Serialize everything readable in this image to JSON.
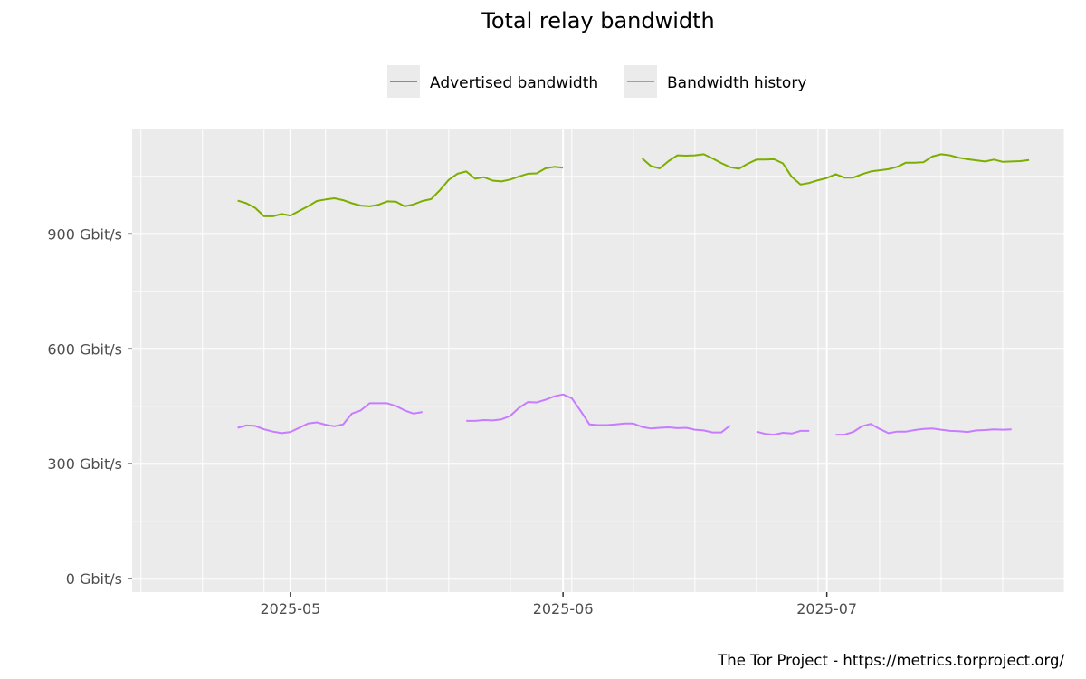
{
  "chart_data": {
    "type": "line",
    "title": "Total relay bandwidth",
    "caption": "The Tor Project - https://metrics.torproject.org/",
    "xlabel": "",
    "ylabel": "",
    "x_range": [
      "2025-04-13",
      "2025-07-28"
    ],
    "y_range": [
      -35,
      1175
    ],
    "y_ticks": [
      {
        "value": 0,
        "label": "0 Gbit/s"
      },
      {
        "value": 300,
        "label": "300 Gbit/s"
      },
      {
        "value": 600,
        "label": "600 Gbit/s"
      },
      {
        "value": 900,
        "label": "900 Gbit/s"
      }
    ],
    "x_ticks": [
      {
        "date": "2025-05-01",
        "label": "2025-05"
      },
      {
        "date": "2025-06-01",
        "label": "2025-06"
      },
      {
        "date": "2025-07-01",
        "label": "2025-07"
      }
    ],
    "grid": true,
    "legend_position": "top",
    "series": [
      {
        "name": "Advertised bandwidth",
        "color": "#7cae00",
        "segments": [
          [
            [
              "2025-04-25",
              987
            ],
            [
              "2025-04-26",
              980
            ],
            [
              "2025-04-27",
              968
            ],
            [
              "2025-04-28",
              946
            ],
            [
              "2025-04-29",
              946
            ],
            [
              "2025-04-30",
              952
            ],
            [
              "2025-05-01",
              948
            ],
            [
              "2025-05-02",
              960
            ],
            [
              "2025-05-03",
              972
            ],
            [
              "2025-05-04",
              986
            ],
            [
              "2025-05-05",
              990
            ],
            [
              "2025-05-06",
              993
            ],
            [
              "2025-05-07",
              988
            ],
            [
              "2025-05-08",
              980
            ],
            [
              "2025-05-09",
              974
            ],
            [
              "2025-05-10",
              972
            ],
            [
              "2025-05-11",
              976
            ],
            [
              "2025-05-12",
              985
            ],
            [
              "2025-05-13",
              984
            ],
            [
              "2025-05-14",
              972
            ],
            [
              "2025-05-15",
              977
            ],
            [
              "2025-05-16",
              986
            ],
            [
              "2025-05-17",
              991
            ],
            [
              "2025-05-18",
              1014
            ],
            [
              "2025-05-19",
              1041
            ],
            [
              "2025-05-20",
              1057
            ],
            [
              "2025-05-21",
              1063
            ],
            [
              "2025-05-22",
              1044
            ],
            [
              "2025-05-23",
              1048
            ],
            [
              "2025-05-24",
              1039
            ],
            [
              "2025-05-25",
              1037
            ],
            [
              "2025-05-26",
              1042
            ],
            [
              "2025-05-27",
              1050
            ],
            [
              "2025-05-28",
              1057
            ],
            [
              "2025-05-29",
              1058
            ],
            [
              "2025-05-30",
              1071
            ],
            [
              "2025-05-31",
              1075
            ],
            [
              "2025-06-01",
              1073
            ]
          ],
          [
            [
              "2025-06-10",
              1097
            ],
            [
              "2025-06-11",
              1077
            ],
            [
              "2025-06-12",
              1071
            ],
            [
              "2025-06-13",
              1090
            ],
            [
              "2025-06-14",
              1105
            ],
            [
              "2025-06-15",
              1104
            ],
            [
              "2025-06-16",
              1105
            ],
            [
              "2025-06-17",
              1108
            ],
            [
              "2025-06-18",
              1097
            ],
            [
              "2025-06-19",
              1085
            ],
            [
              "2025-06-20",
              1074
            ],
            [
              "2025-06-21",
              1070
            ],
            [
              "2025-06-22",
              1083
            ],
            [
              "2025-06-23",
              1094
            ],
            [
              "2025-06-24",
              1094
            ],
            [
              "2025-06-25",
              1095
            ],
            [
              "2025-06-26",
              1084
            ],
            [
              "2025-06-27",
              1049
            ],
            [
              "2025-06-28",
              1029
            ],
            [
              "2025-06-29",
              1033
            ],
            [
              "2025-06-30",
              1040
            ],
            [
              "2025-07-01",
              1046
            ],
            [
              "2025-07-02",
              1056
            ],
            [
              "2025-07-03",
              1047
            ],
            [
              "2025-07-04",
              1047
            ],
            [
              "2025-07-05",
              1056
            ],
            [
              "2025-07-06",
              1063
            ],
            [
              "2025-07-07",
              1066
            ],
            [
              "2025-07-08",
              1069
            ],
            [
              "2025-07-09",
              1075
            ],
            [
              "2025-07-10",
              1086
            ],
            [
              "2025-07-11",
              1086
            ],
            [
              "2025-07-12",
              1087
            ],
            [
              "2025-07-13",
              1102
            ],
            [
              "2025-07-14",
              1108
            ],
            [
              "2025-07-15",
              1105
            ],
            [
              "2025-07-16",
              1099
            ],
            [
              "2025-07-17",
              1095
            ],
            [
              "2025-07-18",
              1092
            ],
            [
              "2025-07-19",
              1089
            ],
            [
              "2025-07-20",
              1094
            ],
            [
              "2025-07-21",
              1088
            ],
            [
              "2025-07-22",
              1089
            ],
            [
              "2025-07-23",
              1090
            ],
            [
              "2025-07-24",
              1093
            ]
          ]
        ]
      },
      {
        "name": "Bandwidth history",
        "color": "#c77cff",
        "segments": [
          [
            [
              "2025-04-25",
              394
            ],
            [
              "2025-04-26",
              400
            ],
            [
              "2025-04-27",
              399
            ],
            [
              "2025-04-28",
              390
            ],
            [
              "2025-04-29",
              384
            ],
            [
              "2025-04-30",
              380
            ],
            [
              "2025-05-01",
              383
            ],
            [
              "2025-05-02",
              394
            ],
            [
              "2025-05-03",
              405
            ],
            [
              "2025-05-04",
              408
            ],
            [
              "2025-05-05",
              402
            ],
            [
              "2025-05-06",
              398
            ],
            [
              "2025-05-07",
              403
            ],
            [
              "2025-05-08",
              431
            ],
            [
              "2025-05-09",
              439
            ],
            [
              "2025-05-10",
              458
            ],
            [
              "2025-05-11",
              458
            ],
            [
              "2025-05-12",
              458
            ],
            [
              "2025-05-13",
              451
            ],
            [
              "2025-05-14",
              439
            ],
            [
              "2025-05-15",
              431
            ],
            [
              "2025-05-16",
              435
            ]
          ],
          [
            [
              "2025-05-21",
              412
            ],
            [
              "2025-05-22",
              412
            ],
            [
              "2025-05-23",
              414
            ],
            [
              "2025-05-24",
              413
            ],
            [
              "2025-05-25",
              416
            ],
            [
              "2025-05-26",
              425
            ],
            [
              "2025-05-27",
              446
            ],
            [
              "2025-05-28",
              461
            ],
            [
              "2025-05-29",
              460
            ],
            [
              "2025-05-30",
              467
            ],
            [
              "2025-05-31",
              476
            ],
            [
              "2025-06-01",
              481
            ],
            [
              "2025-06-02",
              471
            ],
            [
              "2025-06-03",
              438
            ],
            [
              "2025-06-04",
              403
            ],
            [
              "2025-06-05",
              401
            ],
            [
              "2025-06-06",
              401
            ],
            [
              "2025-06-07",
              403
            ],
            [
              "2025-06-08",
              405
            ],
            [
              "2025-06-09",
              405
            ],
            [
              "2025-06-10",
              396
            ],
            [
              "2025-06-11",
              392
            ],
            [
              "2025-06-12",
              394
            ],
            [
              "2025-06-13",
              395
            ],
            [
              "2025-06-14",
              393
            ],
            [
              "2025-06-15",
              394
            ],
            [
              "2025-06-16",
              389
            ],
            [
              "2025-06-17",
              387
            ],
            [
              "2025-06-18",
              382
            ],
            [
              "2025-06-19",
              382
            ],
            [
              "2025-06-20",
              400
            ]
          ],
          [
            [
              "2025-06-23",
              384
            ],
            [
              "2025-06-24",
              378
            ],
            [
              "2025-06-25",
              376
            ],
            [
              "2025-06-26",
              381
            ],
            [
              "2025-06-27",
              379
            ],
            [
              "2025-06-28",
              386
            ],
            [
              "2025-06-29",
              386
            ]
          ],
          [
            [
              "2025-07-02",
              376
            ],
            [
              "2025-07-03",
              376
            ],
            [
              "2025-07-04",
              383
            ],
            [
              "2025-07-05",
              398
            ],
            [
              "2025-07-06",
              404
            ],
            [
              "2025-07-07",
              391
            ],
            [
              "2025-07-08",
              380
            ],
            [
              "2025-07-09",
              384
            ],
            [
              "2025-07-10",
              384
            ],
            [
              "2025-07-11",
              388
            ],
            [
              "2025-07-12",
              391
            ],
            [
              "2025-07-13",
              392
            ],
            [
              "2025-07-14",
              389
            ],
            [
              "2025-07-15",
              386
            ],
            [
              "2025-07-16",
              385
            ],
            [
              "2025-07-17",
              383
            ],
            [
              "2025-07-18",
              387
            ],
            [
              "2025-07-19",
              388
            ],
            [
              "2025-07-20",
              390
            ],
            [
              "2025-07-21",
              389
            ],
            [
              "2025-07-22",
              390
            ]
          ]
        ]
      }
    ]
  }
}
